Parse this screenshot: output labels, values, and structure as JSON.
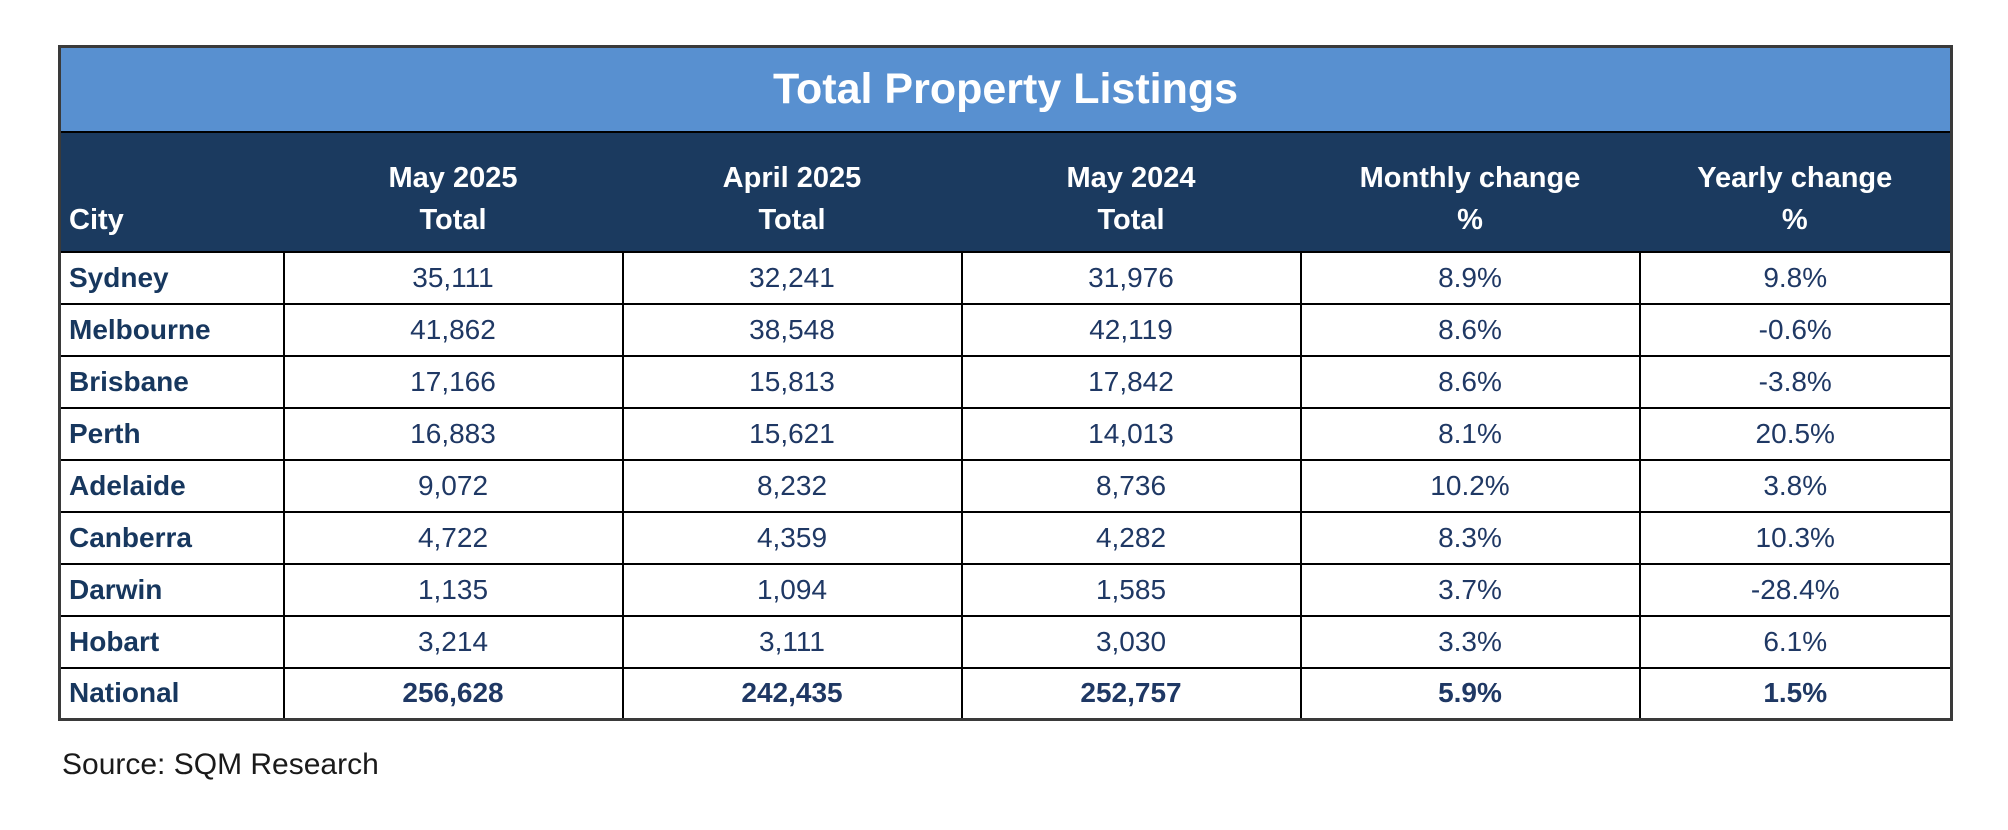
{
  "title": "Total Property Listings",
  "source": "Source: SQM Research",
  "colors": {
    "title_bar_blue": "#5890d0",
    "header_navy": "#1b3a5f",
    "body_text_navy": "#1f3864",
    "city_text_navy": "#17375e",
    "negative_red": "#fe0000",
    "header_text_white": "#ffffff"
  },
  "chart_data": {
    "type": "table",
    "title": "Total Property Listings",
    "columns": [
      {
        "line1": "",
        "line2": "City"
      },
      {
        "line1": "May 2025",
        "line2": "Total"
      },
      {
        "line1": "April 2025",
        "line2": "Total"
      },
      {
        "line1": "May 2024",
        "line2": "Total"
      },
      {
        "line1": "Monthly change",
        "line2": "%"
      },
      {
        "line1": "Yearly change",
        "line2": "%"
      }
    ],
    "rows": [
      {
        "city": "Sydney",
        "may_2025_total": "35,111",
        "april_2025_total": "32,241",
        "may_2024_total": "31,976",
        "monthly_change": "8.9%",
        "yearly_change": "9.8%"
      },
      {
        "city": "Melbourne",
        "may_2025_total": "41,862",
        "april_2025_total": "38,548",
        "may_2024_total": "42,119",
        "monthly_change": "8.6%",
        "yearly_change": "-0.6%"
      },
      {
        "city": "Brisbane",
        "may_2025_total": "17,166",
        "april_2025_total": "15,813",
        "may_2024_total": "17,842",
        "monthly_change": "8.6%",
        "yearly_change": "-3.8%"
      },
      {
        "city": "Perth",
        "may_2025_total": "16,883",
        "april_2025_total": "15,621",
        "may_2024_total": "14,013",
        "monthly_change": "8.1%",
        "yearly_change": "20.5%"
      },
      {
        "city": "Adelaide",
        "may_2025_total": "9,072",
        "april_2025_total": "8,232",
        "may_2024_total": "8,736",
        "monthly_change": "10.2%",
        "yearly_change": "3.8%"
      },
      {
        "city": "Canberra",
        "may_2025_total": "4,722",
        "april_2025_total": "4,359",
        "may_2024_total": "4,282",
        "monthly_change": "8.3%",
        "yearly_change": "10.3%"
      },
      {
        "city": "Darwin",
        "may_2025_total": "1,135",
        "april_2025_total": "1,094",
        "may_2024_total": "1,585",
        "monthly_change": "3.7%",
        "yearly_change": "-28.4%"
      },
      {
        "city": "Hobart",
        "may_2025_total": "3,214",
        "april_2025_total": "3,111",
        "may_2024_total": "3,030",
        "monthly_change": "3.3%",
        "yearly_change": "6.1%"
      },
      {
        "city": "National",
        "may_2025_total": "256,628",
        "april_2025_total": "242,435",
        "may_2024_total": "252,757",
        "monthly_change": "5.9%",
        "yearly_change": "1.5%"
      }
    ]
  }
}
